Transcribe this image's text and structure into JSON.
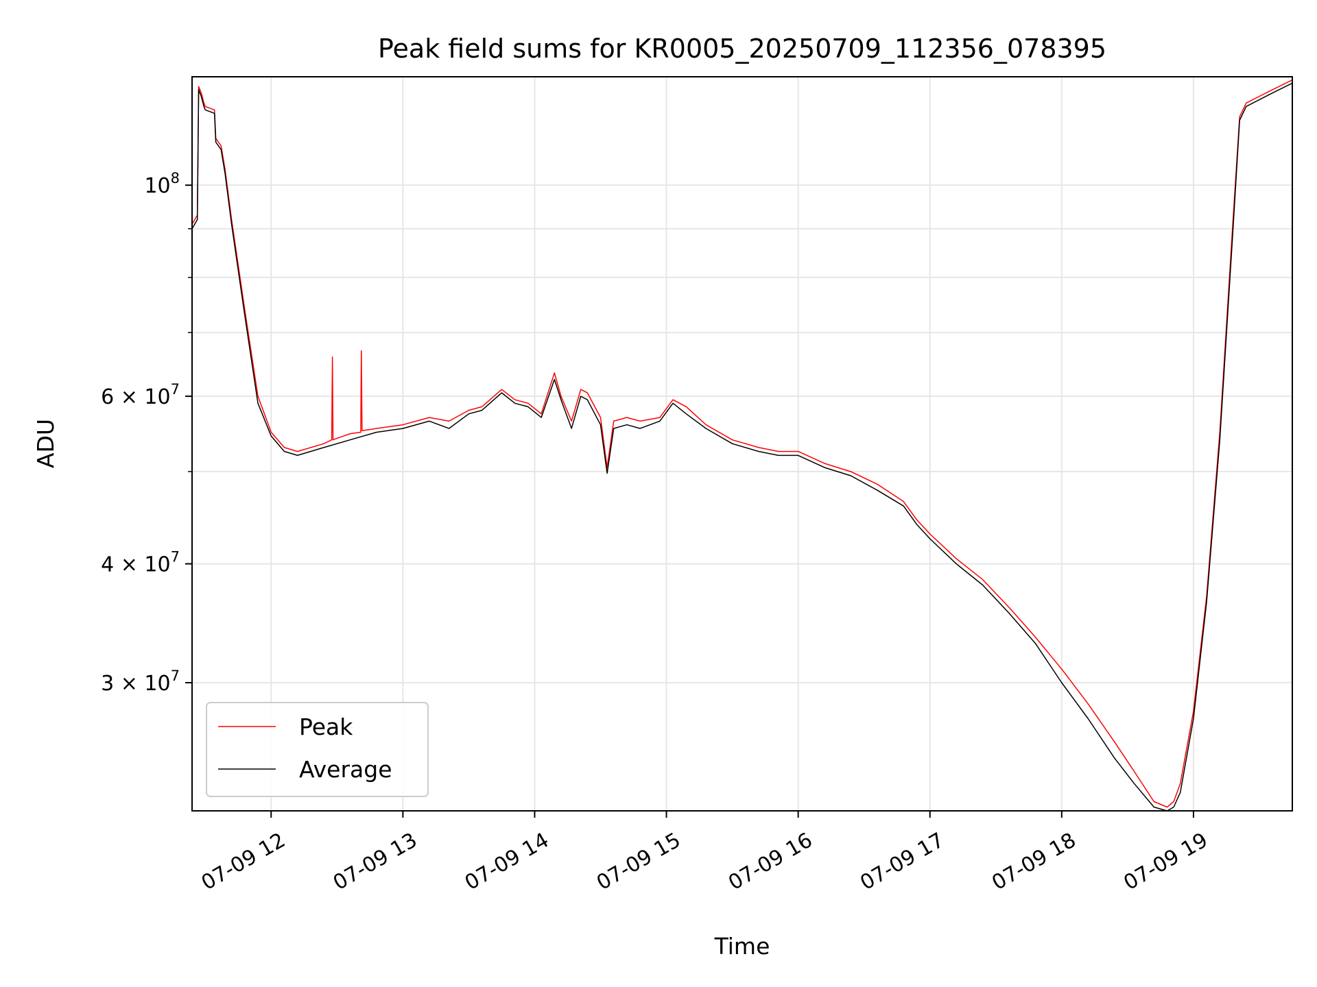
{
  "chart_data": {
    "type": "line",
    "title": "Peak field sums for KR0005_20250709_112356_078395",
    "xlabel": "Time",
    "ylabel": "ADU",
    "x_ticks": [
      "07-09 12",
      "07-09 13",
      "07-09 14",
      "07-09 15",
      "07-09 16",
      "07-09 17",
      "07-09 18",
      "07-09 19"
    ],
    "x_tick_hours": [
      12,
      13,
      14,
      15,
      16,
      17,
      18,
      19
    ],
    "xlim_hours": [
      11.4,
      19.75
    ],
    "y_scale": "log",
    "ylim": [
      22000000,
      130000000
    ],
    "y_ticks": [
      {
        "value": 100000000,
        "base": "10",
        "exp": "8"
      },
      {
        "value": 60000000,
        "base": "6 × 10",
        "exp": "7"
      },
      {
        "value": 40000000,
        "base": "4 × 10",
        "exp": "7"
      },
      {
        "value": 30000000,
        "base": "3 × 10",
        "exp": "7"
      }
    ],
    "y_minor_ticks": [
      50000000,
      70000000,
      80000000,
      90000000
    ],
    "grid": true,
    "legend_position": "lower-left",
    "series": [
      {
        "name": "Peak",
        "color": "#ff0000",
        "x_hours": [
          11.4,
          11.44,
          11.45,
          11.47,
          11.49,
          11.5,
          11.57,
          11.58,
          11.6,
          11.62,
          11.65,
          11.7,
          11.8,
          11.9,
          12.0,
          12.1,
          12.2,
          12.4,
          12.46,
          12.465,
          12.47,
          12.5,
          12.6,
          12.68,
          12.685,
          12.69,
          12.8,
          13.0,
          13.2,
          13.35,
          13.5,
          13.6,
          13.75,
          13.85,
          13.95,
          14.05,
          14.15,
          14.2,
          14.28,
          14.35,
          14.4,
          14.5,
          14.55,
          14.6,
          14.7,
          14.8,
          14.95,
          15.05,
          15.15,
          15.3,
          15.5,
          15.7,
          15.85,
          16.0,
          16.2,
          16.4,
          16.6,
          16.8,
          16.9,
          17.0,
          17.2,
          17.4,
          17.6,
          17.8,
          18.0,
          18.2,
          18.4,
          18.55,
          18.7,
          18.8,
          18.85,
          18.9,
          19.0,
          19.1,
          19.2,
          19.3,
          19.35,
          19.4,
          19.5,
          19.6,
          19.75
        ],
        "y": [
          91000000,
          93000000,
          127000000,
          125000000,
          122000000,
          121000000,
          120000000,
          112000000,
          111000000,
          110000000,
          104000000,
          92000000,
          74000000,
          60000000,
          55000000,
          53000000,
          52500000,
          53500000,
          54000000,
          66000000,
          54000000,
          54200000,
          54800000,
          55000000,
          67000000,
          55200000,
          55500000,
          56000000,
          57000000,
          56500000,
          58000000,
          58500000,
          61000000,
          59500000,
          59000000,
          57500000,
          63500000,
          60000000,
          56500000,
          61000000,
          60500000,
          57000000,
          50500000,
          56500000,
          57000000,
          56500000,
          57000000,
          59500000,
          58500000,
          56000000,
          54000000,
          53000000,
          52500000,
          52500000,
          51000000,
          50000000,
          48500000,
          46500000,
          44500000,
          43000000,
          40500000,
          38500000,
          36000000,
          33500000,
          31000000,
          28500000,
          26000000,
          24200000,
          22500000,
          22200000,
          22500000,
          23500000,
          28000000,
          37000000,
          55000000,
          92000000,
          118000000,
          122000000,
          124000000,
          126000000,
          129000000
        ]
      },
      {
        "name": "Average",
        "color": "#000000",
        "x_hours": [
          11.4,
          11.44,
          11.45,
          11.47,
          11.49,
          11.5,
          11.57,
          11.58,
          11.6,
          11.62,
          11.65,
          11.7,
          11.8,
          11.9,
          12.0,
          12.1,
          12.2,
          12.4,
          12.6,
          12.8,
          13.0,
          13.2,
          13.35,
          13.5,
          13.6,
          13.75,
          13.85,
          13.95,
          14.05,
          14.15,
          14.2,
          14.28,
          14.35,
          14.4,
          14.5,
          14.55,
          14.6,
          14.7,
          14.8,
          14.95,
          15.05,
          15.15,
          15.3,
          15.5,
          15.7,
          15.85,
          16.0,
          16.2,
          16.4,
          16.6,
          16.8,
          16.9,
          17.0,
          17.2,
          17.4,
          17.6,
          17.8,
          18.0,
          18.2,
          18.4,
          18.55,
          18.7,
          18.8,
          18.85,
          18.9,
          19.0,
          19.1,
          19.2,
          19.3,
          19.35,
          19.4,
          19.5,
          19.6,
          19.75
        ],
        "y": [
          90000000,
          92000000,
          126000000,
          124000000,
          121000000,
          120000000,
          119000000,
          111000000,
          110000000,
          109000000,
          103000000,
          91000000,
          73000000,
          59000000,
          54500000,
          52500000,
          52000000,
          53000000,
          54000000,
          55000000,
          55500000,
          56500000,
          55500000,
          57500000,
          58000000,
          60500000,
          59000000,
          58500000,
          57000000,
          62500000,
          59500000,
          55500000,
          60000000,
          59500000,
          56000000,
          49800000,
          55500000,
          56000000,
          55500000,
          56500000,
          59000000,
          57500000,
          55500000,
          53500000,
          52500000,
          52000000,
          52000000,
          50500000,
          49500000,
          47800000,
          46000000,
          44000000,
          42500000,
          40000000,
          38000000,
          35500000,
          33000000,
          30000000,
          27500000,
          25000000,
          23500000,
          22200000,
          22000000,
          22200000,
          23000000,
          27500000,
          36500000,
          54000000,
          90000000,
          117000000,
          121000000,
          123000000,
          125000000,
          128000000
        ]
      }
    ]
  }
}
